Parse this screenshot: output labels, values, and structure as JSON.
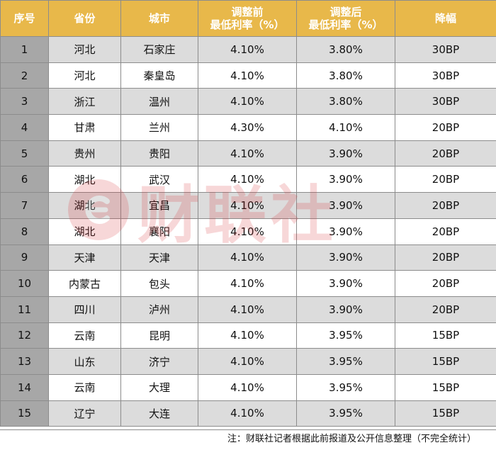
{
  "columns": [
    "序号",
    "省份",
    "城市",
    "调整前",
    "最低利率（%）",
    "调整后",
    "最低利率（%）",
    "降幅"
  ],
  "rows": [
    {
      "no": "1",
      "province": "河北",
      "city": "石家庄",
      "before": "4.10%",
      "after": "3.80%",
      "drop": "30BP"
    },
    {
      "no": "2",
      "province": "河北",
      "city": "秦皇岛",
      "before": "4.10%",
      "after": "3.80%",
      "drop": "30BP"
    },
    {
      "no": "3",
      "province": "浙江",
      "city": "温州",
      "before": "4.10%",
      "after": "3.80%",
      "drop": "30BP"
    },
    {
      "no": "4",
      "province": "甘肃",
      "city": "兰州",
      "before": "4.30%",
      "after": "4.10%",
      "drop": "20BP"
    },
    {
      "no": "5",
      "province": "贵州",
      "city": "贵阳",
      "before": "4.10%",
      "after": "3.90%",
      "drop": "20BP"
    },
    {
      "no": "6",
      "province": "湖北",
      "city": "武汉",
      "before": "4.10%",
      "after": "3.90%",
      "drop": "20BP"
    },
    {
      "no": "7",
      "province": "湖北",
      "city": "宜昌",
      "before": "4.10%",
      "after": "3.90%",
      "drop": "20BP"
    },
    {
      "no": "8",
      "province": "湖北",
      "city": "襄阳",
      "before": "4.10%",
      "after": "3.90%",
      "drop": "20BP"
    },
    {
      "no": "9",
      "province": "天津",
      "city": "天津",
      "before": "4.10%",
      "after": "3.90%",
      "drop": "20BP"
    },
    {
      "no": "10",
      "province": "内蒙古",
      "city": "包头",
      "before": "4.10%",
      "after": "3.90%",
      "drop": "20BP"
    },
    {
      "no": "11",
      "province": "四川",
      "city": "泸州",
      "before": "4.10%",
      "after": "3.90%",
      "drop": "20BP"
    },
    {
      "no": "12",
      "province": "云南",
      "city": "昆明",
      "before": "4.10%",
      "after": "3.95%",
      "drop": "15BP"
    },
    {
      "no": "13",
      "province": "山东",
      "city": "济宁",
      "before": "4.10%",
      "after": "3.95%",
      "drop": "15BP"
    },
    {
      "no": "14",
      "province": "云南",
      "city": "大理",
      "before": "4.10%",
      "after": "3.95%",
      "drop": "15BP"
    },
    {
      "no": "15",
      "province": "辽宁",
      "city": "大连",
      "before": "4.10%",
      "after": "3.95%",
      "drop": "15BP"
    }
  ],
  "footnote": "注：财联社记者根据此前报道及公开信息整理（不完全统计）",
  "watermark": {
    "text": "财联社",
    "icon": "cls-logo-icon"
  },
  "colors": {
    "header_bg": "#e8b84a",
    "index_bg": "#a7a7a7",
    "alt_row_bg": "#dcdcdc",
    "watermark": "#d8262b"
  }
}
